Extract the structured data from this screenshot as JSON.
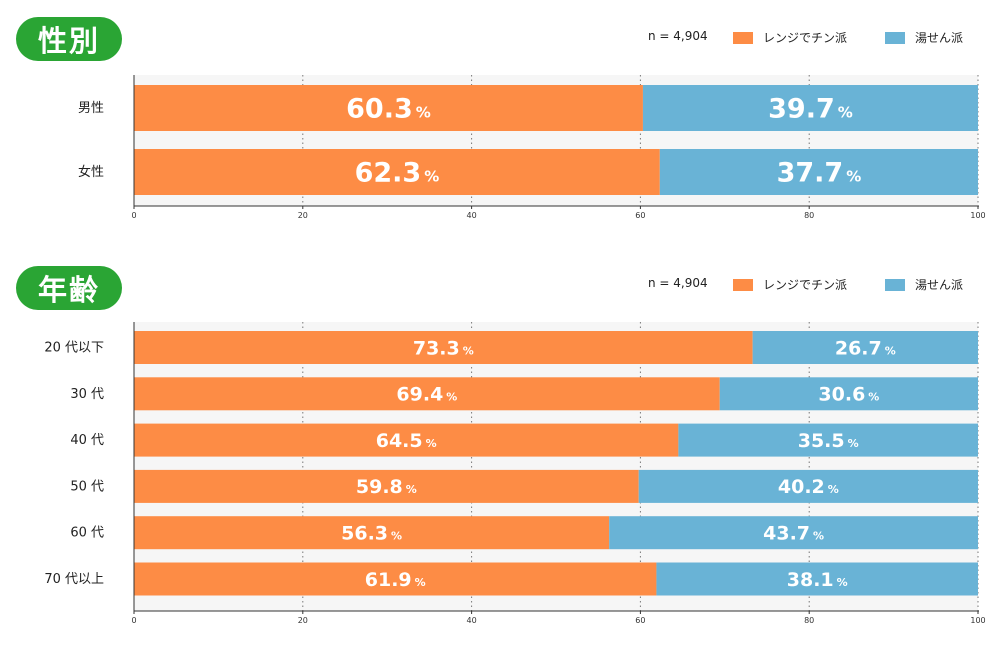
{
  "legend": {
    "n_label": "n = 4,904",
    "series1": "レンジでチン派",
    "series2": "湯せん派",
    "series1_color": "#fd8c45",
    "series2_color": "#69b3d6"
  },
  "badge_color": "#2aa534",
  "percent_sign": "%",
  "chart_data": [
    {
      "type": "bar",
      "orientation": "horizontal-stacked",
      "title": "性別",
      "categories": [
        "男性",
        "女性"
      ],
      "series": [
        {
          "name": "レンジでチン派",
          "values": [
            60.3,
            62.3
          ]
        },
        {
          "name": "湯せん派",
          "values": [
            39.7,
            37.7
          ]
        }
      ],
      "xlim": [
        0,
        100
      ],
      "xticks": [
        "0",
        "20",
        "40",
        "60",
        "80",
        "100"
      ],
      "grid": "dotted vertical",
      "legend_position": "top-right"
    },
    {
      "type": "bar",
      "orientation": "horizontal-stacked",
      "title": "年齢",
      "categories": [
        "20 代以下",
        "30 代",
        "40 代",
        "50 代",
        "60 代",
        "70 代以上"
      ],
      "series": [
        {
          "name": "レンジでチン派",
          "values": [
            73.3,
            69.4,
            64.5,
            59.8,
            56.3,
            61.9
          ]
        },
        {
          "name": "湯せん派",
          "values": [
            26.7,
            30.6,
            35.5,
            40.2,
            43.7,
            38.1
          ]
        }
      ],
      "xlim": [
        0,
        100
      ],
      "xticks": [
        "0",
        "20",
        "40",
        "60",
        "80",
        "100"
      ],
      "grid": "dotted vertical",
      "legend_position": "top-right"
    }
  ]
}
